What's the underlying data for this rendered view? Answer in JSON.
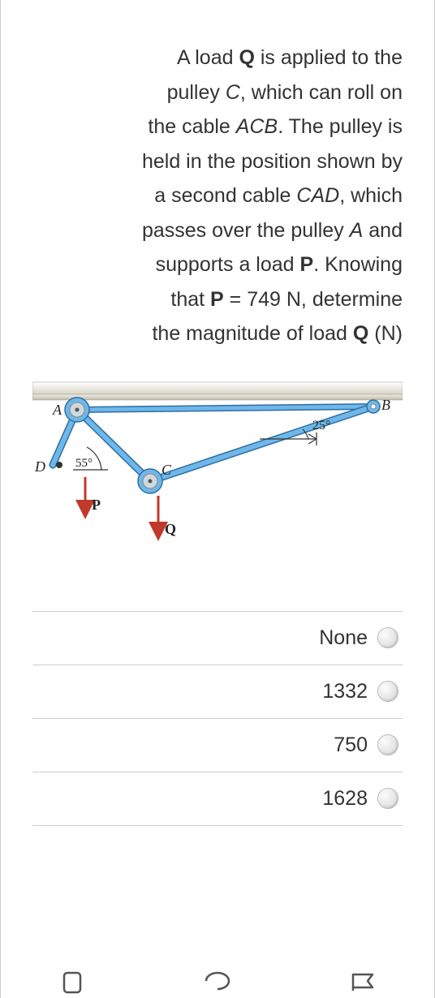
{
  "problem": {
    "line1_pre": "A load ",
    "line1_Q": "Q",
    "line1_post": " is applied to the",
    "line2_pre": "pulley ",
    "line2_C": "C",
    "line2_post": ", which can roll on",
    "line3_pre": "the cable ",
    "line3_ACB": "ACB",
    "line3_post": ". The pulley is",
    "line4": "held in the position shown by",
    "line5_pre": "a second cable ",
    "line5_CAD": "CAD",
    "line5_post": ", which",
    "line6_pre": "passes over the pulley ",
    "line6_A": "A",
    "line6_post": " and",
    "line7_pre": "supports a load ",
    "line7_P": "P",
    "line7_post": ". Knowing",
    "line8_pre": "that ",
    "line8_P": "P",
    "line8_eq": " = 749 N, determine",
    "line9_pre": "the magnitude of load ",
    "line9_Q": "Q",
    "line9_post": " (N)"
  },
  "diagram": {
    "labels": {
      "A": "A",
      "B": "B",
      "C": "C",
      "D": "D",
      "P": "P",
      "Q": "Q"
    },
    "angle25": "25°",
    "angle55": "55°",
    "colors": {
      "bar_top": "#f0ede6",
      "bar_bottom": "#bfb8a3",
      "cable": "#6fb7e8",
      "cable_stroke": "#2d6fa3",
      "pulley_center": "#cfd8dc",
      "angle_line": "#333333",
      "load_arrow": "#c0392b",
      "text": "#222222"
    }
  },
  "options": [
    {
      "label": "None"
    },
    {
      "label": "1332"
    },
    {
      "label": "750"
    },
    {
      "label": "1628"
    }
  ]
}
